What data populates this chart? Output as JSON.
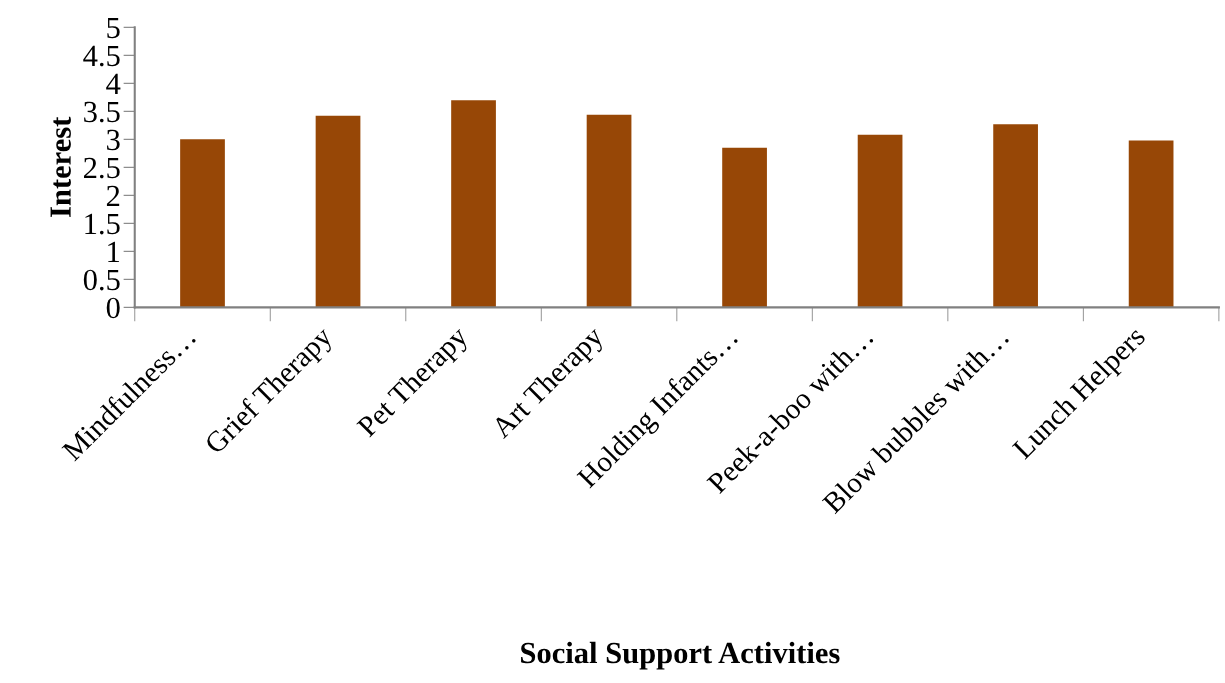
{
  "chart_data": {
    "type": "bar",
    "xlabel": "Social Support Activities",
    "ylabel": "Interest",
    "categories": [
      "Mindfulness…",
      "Grief Therapy",
      "Pet Therapy",
      "Art Therapy",
      "Holding Infants…",
      "Peek-a-boo with…",
      "Blow bubbles with…",
      "Lunch Helpers"
    ],
    "values": [
      3.0,
      3.42,
      3.7,
      3.44,
      2.85,
      3.08,
      3.27,
      2.98
    ],
    "color": "#974706",
    "ylim": [
      0,
      5
    ],
    "yticks": [
      0,
      0.5,
      1,
      1.5,
      2,
      2.5,
      3,
      3.5,
      4,
      4.5,
      5
    ],
    "grid": false
  }
}
